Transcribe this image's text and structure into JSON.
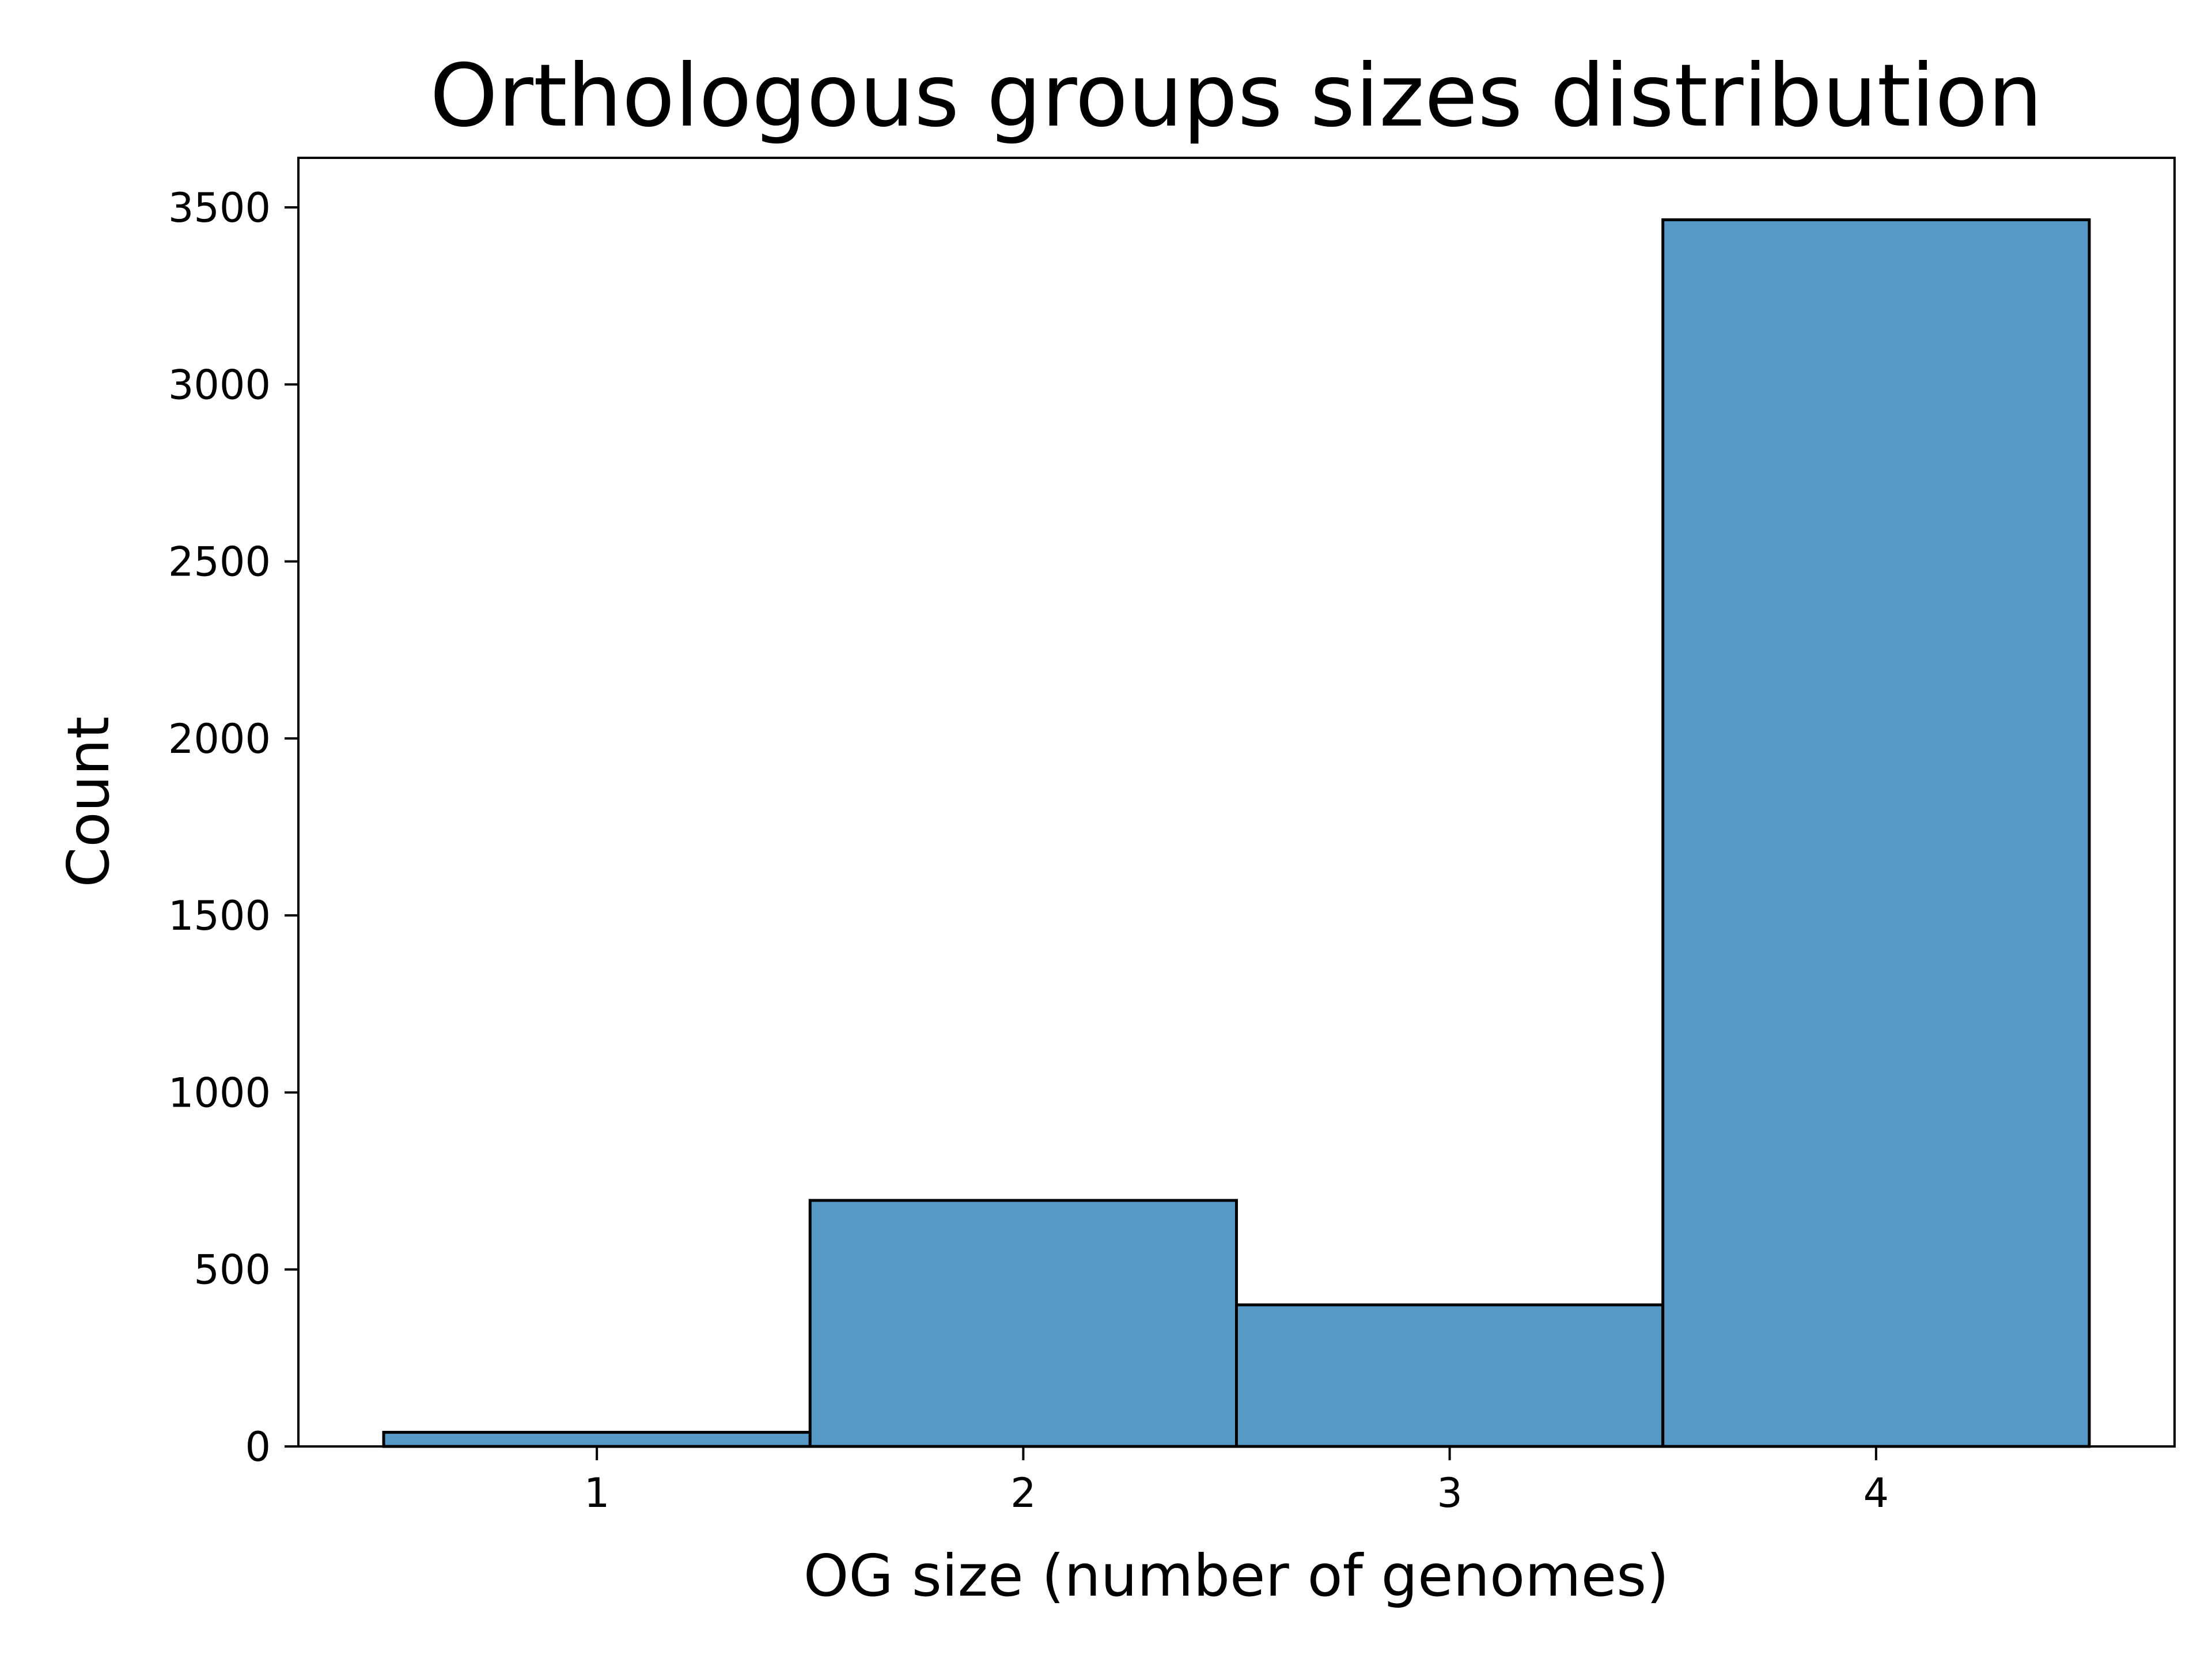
{
  "chart_data": {
    "type": "bar",
    "title": "Orthologous groups sizes distribution",
    "xlabel": "OG size (number of genomes)",
    "ylabel": "Count",
    "categories": [
      "1",
      "2",
      "3",
      "4"
    ],
    "bins": [
      [
        0.5,
        1.5
      ],
      [
        1.5,
        2.5
      ],
      [
        2.5,
        3.5
      ],
      [
        3.5,
        4.5
      ]
    ],
    "values": [
      40,
      695,
      400,
      3465
    ],
    "xlim": [
      0.3,
      4.7
    ],
    "ylim": [
      0,
      3640
    ],
    "xticks": [
      1,
      2,
      3,
      4
    ],
    "xtick_labels": [
      "1",
      "2",
      "3",
      "4"
    ],
    "yticks": [
      0,
      500,
      1000,
      1500,
      2000,
      2500,
      3000,
      3500
    ],
    "ytick_labels": [
      "0",
      "500",
      "1000",
      "1500",
      "2000",
      "2500",
      "3000",
      "3500"
    ],
    "grid": false,
    "bar_color": "#5799c6",
    "edge_color": "#000000"
  }
}
